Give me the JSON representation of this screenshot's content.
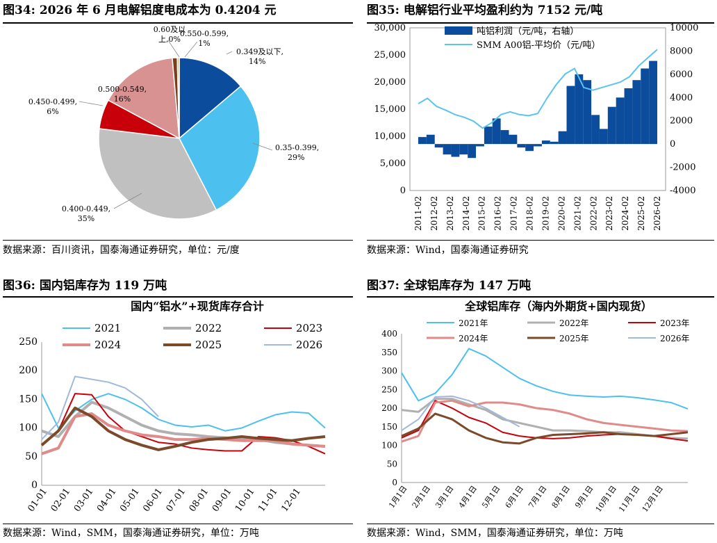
{
  "panels": [
    {
      "id": "fig34",
      "title": "图34:  2026 年 6 月电解铝度电成本为 0.4204 元",
      "source": "数据来源：百川资讯，国泰海通证券研究，单位：元/度",
      "chart_data": {
        "type": "pie",
        "slices": [
          {
            "label": "0.349及以下,",
            "pct_label": "14%",
            "value": 14,
            "color": "#0b4d9c"
          },
          {
            "label": "0.35-0.399,",
            "pct_label": "29%",
            "value": 29,
            "color": "#4cc0ee"
          },
          {
            "label": "0.400-0.449,",
            "pct_label": "35%",
            "value": 35,
            "color": "#c0c0c0"
          },
          {
            "label": "0.450-0.499,",
            "pct_label": "6%",
            "value": 6,
            "color": "#c8000a"
          },
          {
            "label": "0.500-0.549,",
            "pct_label": "16%",
            "value": 16,
            "color": "#d89292"
          },
          {
            "label": "0.550-0.599,",
            "pct_label": "1%",
            "value": 1,
            "color": "#7a3e1c"
          },
          {
            "label": "0.60及以",
            "label2": "上,0%",
            "value": 0.4,
            "color": "#c8b88a"
          }
        ]
      }
    },
    {
      "id": "fig35",
      "title": "图35:  电解铝行业平均盈利约为 7152 元/吨",
      "source": "数据来源：Wind，国泰海通证券研究",
      "chart_data": {
        "type": "bar+line",
        "x_ticks": [
          "2011-02",
          "2012-02",
          "2013-02",
          "2014-02",
          "2015-02",
          "2016-02",
          "2017-02",
          "2018-02",
          "2019-02",
          "2020-02",
          "2021-02",
          "2022-02",
          "2023-02",
          "2024-02",
          "2025-02",
          "2026-02"
        ],
        "y_left": {
          "min": 0,
          "max": 30000,
          "ticks": [
            "0",
            "5,000",
            "10,000",
            "15,000",
            "20,000",
            "25,000",
            "30,000"
          ]
        },
        "y_right": {
          "min": -4000,
          "max": 10000,
          "ticks": [
            "-4000",
            "-2000",
            "0",
            "2000",
            "4000",
            "6000",
            "8000",
            "10000"
          ]
        },
        "series": [
          {
            "name": "吨铝利润（元/吨，右轴）",
            "kind": "bar",
            "axis": "right",
            "color": "#0b4d9c",
            "values": [
              600,
              800,
              -300,
              -900,
              -1100,
              -900,
              -1200,
              -200,
              1500,
              2200,
              1200,
              800,
              -300,
              -600,
              -200,
              300,
              200,
              1100,
              5000,
              6000,
              5500,
              2500,
              1300,
              3200,
              4000,
              4800,
              5500,
              6500,
              7152
            ]
          },
          {
            "name": "SMM A00铝-平均价（元/吨）",
            "kind": "line",
            "axis": "left",
            "color": "#5bc4ee",
            "values": [
              16000,
              17000,
              15500,
              14800,
              14000,
              13500,
              12800,
              11500,
              12500,
              14000,
              14500,
              14000,
              13800,
              14200,
              17000,
              19500,
              21500,
              22500,
              19000,
              18500,
              19000,
              19500,
              20000,
              21000,
              23000,
              24500,
              26000
            ]
          }
        ]
      }
    },
    {
      "id": "fig36",
      "title": "图36:  国内铝库存为 119 万吨",
      "source": "数据来源：Wind，SMM，国泰海通证券研究，单位：万吨",
      "chart_data": {
        "type": "line",
        "title": "国内“铝水”+现货库存合计",
        "x_ticks": [
          "01-01",
          "02-01",
          "03-01",
          "04-01",
          "05-01",
          "06-01",
          "07-01",
          "08-01",
          "09-01",
          "10-01",
          "11-01",
          "12-01"
        ],
        "y": {
          "min": 0,
          "max": 250,
          "ticks": [
            "0",
            "50",
            "100",
            "150",
            "200",
            "250"
          ]
        },
        "series": [
          {
            "name": "2021",
            "color": "#4cc0ee",
            "width": 2,
            "values": [
              160,
              100,
              130,
              150,
              160,
              150,
              135,
              115,
              105,
              102,
              105,
              95,
              100,
              112,
              123,
              128,
              126,
              100
            ]
          },
          {
            "name": "2022",
            "color": "#b0b0b0",
            "width": 4,
            "values": [
              95,
              85,
              120,
              145,
              135,
              120,
              105,
              95,
              90,
              88,
              85,
              83,
              80,
              80,
              75,
              72,
              70,
              68
            ]
          },
          {
            "name": "2023",
            "color": "#c8000a",
            "width": 2,
            "values": [
              70,
              95,
              160,
              158,
              120,
              95,
              85,
              75,
              72,
              65,
              62,
              60,
              60,
              85,
              83,
              78,
              68,
              55
            ]
          },
          {
            "name": "2024",
            "color": "#e08a8a",
            "width": 4,
            "values": [
              55,
              65,
              120,
              125,
              105,
              95,
              88,
              85,
              80,
              80,
              82,
              80,
              78,
              78,
              78,
              72,
              70,
              68
            ]
          },
          {
            "name": "2025",
            "color": "#7a4a2a",
            "width": 4,
            "values": [
              70,
              95,
              135,
              120,
              95,
              80,
              70,
              62,
              68,
              75,
              80,
              82,
              85,
              82,
              80,
              78,
              82,
              85
            ]
          },
          {
            "name": "2026",
            "color": "#9fb8dc",
            "width": 2,
            "values": [
              80,
              110,
              190,
              185,
              180,
              170,
              150,
              120
            ]
          }
        ]
      }
    },
    {
      "id": "fig37",
      "title": "图37:  全球铝库存为 147 万吨",
      "source": "数据来源：Wind，SMM，国泰海通证券研究，单位：万吨",
      "chart_data": {
        "type": "line",
        "title": "全球铝库存（海内外期货+国内现货）",
        "x_ticks": [
          "1月1日",
          "2月1日",
          "3月1日",
          "4月1日",
          "5月1日",
          "6月1日",
          "7月1日",
          "8月1日",
          "9月1日",
          "10月1日",
          "11月1日",
          "12月1日"
        ],
        "y": {
          "min": 0,
          "max": 400,
          "ticks": [
            "0",
            "50",
            "100",
            "150",
            "200",
            "250",
            "300",
            "350",
            "400"
          ]
        },
        "series": [
          {
            "name": "2021年",
            "color": "#4cc0ee",
            "width": 2,
            "values": [
              295,
              220,
              240,
              290,
              360,
              340,
              310,
              280,
              260,
              245,
              235,
              232,
              230,
              232,
              228,
              222,
              215,
              198
            ]
          },
          {
            "name": "2022年",
            "color": "#b0b0b0",
            "width": 3,
            "values": [
              195,
              190,
              225,
              225,
              210,
              195,
              170,
              160,
              150,
              140,
              140,
              138,
              135,
              135,
              130,
              125,
              120,
              118
            ]
          },
          {
            "name": "2023年",
            "color": "#c8000a",
            "width": 2,
            "values": [
              120,
              140,
              220,
              200,
              175,
              160,
              135,
              125,
              120,
              118,
              120,
              125,
              128,
              130,
              128,
              125,
              118,
              112
            ]
          },
          {
            "name": "2024年",
            "color": "#e08a8a",
            "width": 3,
            "values": [
              110,
              125,
              215,
              220,
              205,
              215,
              215,
              210,
              200,
              195,
              185,
              170,
              160,
              155,
              150,
              145,
              140,
              138
            ]
          },
          {
            "name": "2025年",
            "color": "#7a4a2a",
            "width": 3,
            "values": [
              125,
              145,
              185,
              170,
              140,
              120,
              108,
              105,
              120,
              128,
              130,
              132,
              135,
              130,
              128,
              125,
              130,
              135
            ]
          },
          {
            "name": "2026年",
            "color": "#9fb8dc",
            "width": 2,
            "values": [
              140,
              170,
              230,
              232,
              220,
              200,
              175,
              150
            ]
          }
        ]
      }
    }
  ]
}
